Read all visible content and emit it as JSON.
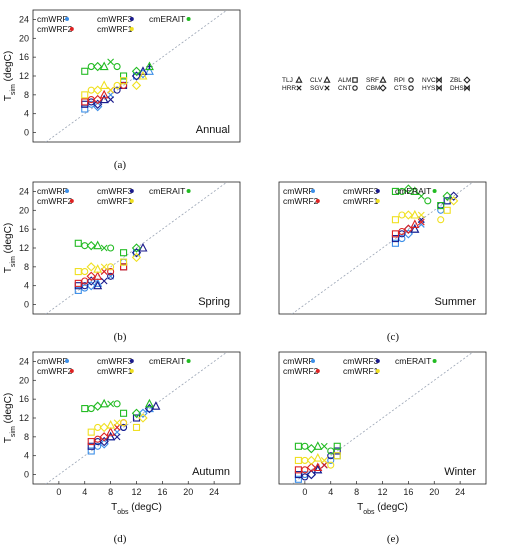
{
  "colors": {
    "cmWRF": "#3d8fe8",
    "cmWRF3": "#1a1a8c",
    "cmERAIT": "#22bb22",
    "cmWRF2": "#dd2222",
    "cmWRF1": "#f0e020",
    "diag": "#9aa4b4"
  },
  "model_order": [
    "cmWRF",
    "cmWRF3",
    "cmERAIT",
    "cmWRF2",
    "cmWRF1"
  ],
  "symbol_legend": {
    "rows": [
      [
        {
          "code": "TLJ",
          "marker": "triangle"
        },
        {
          "code": "CLV",
          "marker": "triangle"
        },
        {
          "code": "ALM",
          "marker": "square"
        },
        {
          "code": "SRF",
          "marker": "triangle"
        },
        {
          "code": "RPI",
          "marker": "circle"
        },
        {
          "code": "NVC",
          "marker": "bowtie"
        },
        {
          "code": "ZBL",
          "marker": "diamond"
        }
      ],
      [
        {
          "code": "HRR",
          "marker": "x"
        },
        {
          "code": "SGV",
          "marker": "x"
        },
        {
          "code": "CNT",
          "marker": "circle"
        },
        {
          "code": "CBM",
          "marker": "diamond"
        },
        {
          "code": "CTS",
          "marker": "circle"
        },
        {
          "code": "HYS",
          "marker": "bowtie"
        },
        {
          "code": "DHS",
          "marker": "bowtie"
        }
      ]
    ]
  },
  "chart_data": [
    {
      "type": "scatter",
      "panel": "(a)",
      "season": "Annual",
      "xlabel": "",
      "ylabel": "T_sim (degC)",
      "xlim": [
        -4,
        28
      ],
      "ylim": [
        -2,
        26
      ],
      "xticks": [],
      "yticks": [
        0,
        4,
        8,
        12,
        16,
        20,
        24
      ],
      "series": [
        {
          "name": "cmWRF",
          "points": [
            [
              4,
              5
            ],
            [
              5,
              6
            ],
            [
              6,
              5.5
            ],
            [
              7,
              7
            ],
            [
              8,
              8
            ],
            [
              10,
              11
            ],
            [
              12,
              12
            ],
            [
              13,
              12.5
            ],
            [
              14,
              13
            ]
          ]
        },
        {
          "name": "cmWRF3",
          "points": [
            [
              4,
              6
            ],
            [
              5,
              6.5
            ],
            [
              6,
              6
            ],
            [
              7,
              7
            ],
            [
              8,
              7
            ],
            [
              9,
              9
            ],
            [
              10,
              10
            ],
            [
              12,
              12
            ],
            [
              13,
              13
            ],
            [
              14,
              14
            ]
          ]
        },
        {
          "name": "cmERAIT",
          "points": [
            [
              4,
              13
            ],
            [
              5,
              14
            ],
            [
              6,
              14
            ],
            [
              7,
              14
            ],
            [
              8,
              15
            ],
            [
              9,
              14
            ],
            [
              10,
              12
            ],
            [
              12,
              13
            ],
            [
              14,
              14
            ]
          ]
        },
        {
          "name": "cmWRF2",
          "points": [
            [
              4,
              6.5
            ],
            [
              5,
              7
            ],
            [
              6,
              7
            ],
            [
              7,
              8
            ],
            [
              8,
              9
            ],
            [
              10,
              10
            ]
          ]
        },
        {
          "name": "cmWRF1",
          "points": [
            [
              4,
              8
            ],
            [
              5,
              9
            ],
            [
              6,
              9
            ],
            [
              7,
              10
            ],
            [
              8,
              9
            ],
            [
              9,
              10
            ],
            [
              10,
              11
            ],
            [
              12,
              10
            ],
            [
              13,
              12
            ]
          ]
        }
      ]
    },
    {
      "type": "scatter",
      "panel": "(b)",
      "season": "Spring",
      "xlabel": "",
      "ylabel": "T_sim (degC)",
      "xlim": [
        -4,
        28
      ],
      "ylim": [
        -2,
        26
      ],
      "xticks": [],
      "yticks": [
        0,
        4,
        8,
        12,
        16,
        20,
        24
      ],
      "series": [
        {
          "name": "cmWRF",
          "points": [
            [
              3,
              3
            ],
            [
              4,
              3.5
            ],
            [
              5,
              4
            ],
            [
              6,
              4.5
            ],
            [
              8,
              6
            ],
            [
              10,
              9
            ],
            [
              12,
              11
            ]
          ]
        },
        {
          "name": "cmWRF3",
          "points": [
            [
              3,
              4
            ],
            [
              4,
              4
            ],
            [
              5,
              5
            ],
            [
              6,
              4
            ],
            [
              7,
              5
            ],
            [
              8,
              6
            ],
            [
              10,
              8
            ],
            [
              12,
              11
            ],
            [
              13,
              12
            ]
          ]
        },
        {
          "name": "cmERAIT",
          "points": [
            [
              3,
              13
            ],
            [
              4,
              12.5
            ],
            [
              5,
              12.5
            ],
            [
              6,
              12.5
            ],
            [
              7,
              12
            ],
            [
              8,
              12
            ],
            [
              10,
              11
            ],
            [
              12,
              12
            ]
          ]
        },
        {
          "name": "cmWRF2",
          "points": [
            [
              3,
              4.5
            ],
            [
              4,
              5
            ],
            [
              5,
              6
            ],
            [
              6,
              6
            ],
            [
              7,
              7
            ],
            [
              8,
              7
            ],
            [
              10,
              8
            ]
          ]
        },
        {
          "name": "cmWRF1",
          "points": [
            [
              3,
              7
            ],
            [
              4,
              7
            ],
            [
              5,
              8
            ],
            [
              6,
              7.5
            ],
            [
              7,
              8
            ],
            [
              8,
              8
            ],
            [
              10,
              9
            ],
            [
              12,
              10
            ]
          ]
        }
      ]
    },
    {
      "type": "scatter",
      "panel": "(c)",
      "season": "Summer",
      "xlabel": "",
      "ylabel": "",
      "xlim": [
        -4,
        28
      ],
      "ylim": [
        -2,
        26
      ],
      "xticks": [],
      "yticks": [],
      "series": [
        {
          "name": "cmWRF",
          "points": [
            [
              14,
              13
            ],
            [
              15,
              14
            ],
            [
              16,
              15
            ],
            [
              17,
              16
            ],
            [
              18,
              17
            ],
            [
              21,
              20
            ],
            [
              22,
              22
            ]
          ]
        },
        {
          "name": "cmWRF3",
          "points": [
            [
              14,
              14
            ],
            [
              15,
              15
            ],
            [
              16,
              16
            ],
            [
              17,
              16
            ],
            [
              18,
              18
            ],
            [
              21,
              21
            ],
            [
              22,
              22
            ],
            [
              23,
              23
            ]
          ]
        },
        {
          "name": "cmERAIT",
          "points": [
            [
              14,
              24
            ],
            [
              15,
              24
            ],
            [
              16,
              24.5
            ],
            [
              17,
              24
            ],
            [
              18,
              23
            ],
            [
              19,
              22
            ],
            [
              21,
              21
            ],
            [
              22,
              23
            ]
          ]
        },
        {
          "name": "cmWRF2",
          "points": [
            [
              14,
              15
            ],
            [
              15,
              15.5
            ],
            [
              16,
              16
            ],
            [
              17,
              17
            ],
            [
              18,
              17.5
            ]
          ]
        },
        {
          "name": "cmWRF1",
          "points": [
            [
              14,
              18
            ],
            [
              15,
              19
            ],
            [
              16,
              19
            ],
            [
              17,
              19
            ],
            [
              18,
              19
            ],
            [
              21,
              18
            ],
            [
              22,
              20
            ],
            [
              23,
              22
            ]
          ]
        }
      ]
    },
    {
      "type": "scatter",
      "panel": "(d)",
      "season": "Autumn",
      "xlabel": "T_obs (degC)",
      "ylabel": "T_sim (degC)",
      "xlim": [
        -4,
        28
      ],
      "ylim": [
        -2,
        26
      ],
      "xticks": [
        0,
        4,
        8,
        12,
        16,
        20,
        24
      ],
      "yticks": [
        0,
        4,
        8,
        12,
        16,
        20,
        24
      ],
      "series": [
        {
          "name": "cmWRF",
          "points": [
            [
              5,
              5
            ],
            [
              6,
              6
            ],
            [
              7,
              6.5
            ],
            [
              8,
              8
            ],
            [
              9,
              9
            ],
            [
              10,
              10
            ],
            [
              12,
              12
            ],
            [
              13,
              13
            ],
            [
              14,
              14
            ]
          ]
        },
        {
          "name": "cmWRF3",
          "points": [
            [
              5,
              6
            ],
            [
              6,
              7
            ],
            [
              7,
              7
            ],
            [
              8,
              8
            ],
            [
              9,
              8
            ],
            [
              10,
              10
            ],
            [
              12,
              12
            ],
            [
              14,
              14
            ],
            [
              15,
              14.5
            ]
          ]
        },
        {
          "name": "cmERAIT",
          "points": [
            [
              4,
              14
            ],
            [
              5,
              14
            ],
            [
              6,
              14.5
            ],
            [
              7,
              15
            ],
            [
              8,
              15
            ],
            [
              9,
              15
            ],
            [
              10,
              13
            ],
            [
              12,
              13
            ],
            [
              14,
              15
            ]
          ]
        },
        {
          "name": "cmWRF2",
          "points": [
            [
              5,
              7
            ],
            [
              6,
              7.5
            ],
            [
              7,
              8
            ],
            [
              8,
              9
            ],
            [
              9,
              10
            ],
            [
              10,
              11
            ]
          ]
        },
        {
          "name": "cmWRF1",
          "points": [
            [
              5,
              9
            ],
            [
              6,
              10
            ],
            [
              7,
              10
            ],
            [
              8,
              10.5
            ],
            [
              9,
              11
            ],
            [
              10,
              11
            ],
            [
              12,
              10
            ],
            [
              13,
              12
            ]
          ]
        }
      ]
    },
    {
      "type": "scatter",
      "panel": "(e)",
      "season": "Winter",
      "xlabel": "T_obs (degC)",
      "ylabel": "",
      "xlim": [
        -4,
        28
      ],
      "ylim": [
        -2,
        26
      ],
      "xticks": [
        0,
        4,
        8,
        12,
        16,
        20,
        24
      ],
      "yticks": [],
      "series": [
        {
          "name": "cmWRF",
          "points": [
            [
              -1,
              -1
            ],
            [
              0,
              0
            ],
            [
              1,
              0
            ],
            [
              2,
              1
            ],
            [
              3,
              2
            ],
            [
              4,
              3
            ],
            [
              5,
              4
            ]
          ]
        },
        {
          "name": "cmWRF3",
          "points": [
            [
              -1,
              0
            ],
            [
              0,
              -0.5
            ],
            [
              1,
              0
            ],
            [
              2,
              1
            ],
            [
              3,
              2
            ],
            [
              4,
              4
            ],
            [
              5,
              5
            ]
          ]
        },
        {
          "name": "cmERAIT",
          "points": [
            [
              -1,
              6
            ],
            [
              0,
              6
            ],
            [
              1,
              5.5
            ],
            [
              2,
              6
            ],
            [
              3,
              6
            ],
            [
              4,
              5
            ],
            [
              5,
              6
            ]
          ]
        },
        {
          "name": "cmWRF2",
          "points": [
            [
              -1,
              1
            ],
            [
              0,
              1
            ],
            [
              1,
              1.5
            ],
            [
              2,
              1.5
            ],
            [
              3,
              2
            ]
          ]
        },
        {
          "name": "cmWRF1",
          "points": [
            [
              -1,
              3
            ],
            [
              0,
              3
            ],
            [
              1,
              3
            ],
            [
              2,
              3.5
            ],
            [
              3,
              3
            ],
            [
              4,
              2
            ],
            [
              5,
              4
            ]
          ]
        }
      ]
    }
  ]
}
